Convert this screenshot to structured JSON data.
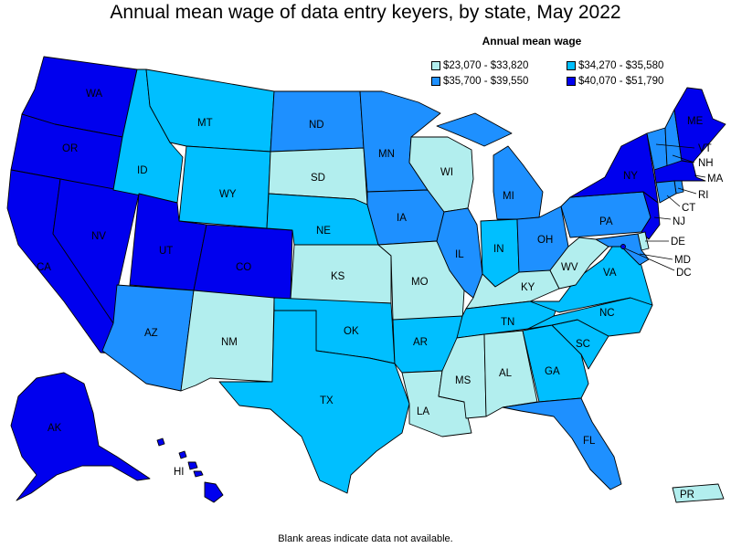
{
  "title": "Annual mean wage of data entry keyers, by state, May 2022",
  "legend": {
    "title": "Annual mean wage",
    "items": [
      {
        "label": "$23,070 - $33,820",
        "color": "#b2eeee"
      },
      {
        "label": "$34,270 - $35,580",
        "color": "#00bfff"
      },
      {
        "label": "$35,700 - $39,550",
        "color": "#1e90ff"
      },
      {
        "label": "$40,070 - $51,790",
        "color": "#0000ee"
      }
    ]
  },
  "footnote": "Blank areas indicate data not available.",
  "states": {
    "WA": {
      "label": "WA",
      "tier": 3
    },
    "OR": {
      "label": "OR",
      "tier": 3
    },
    "CA": {
      "label": "CA",
      "tier": 3
    },
    "NV": {
      "label": "NV",
      "tier": 3
    },
    "ID": {
      "label": "ID",
      "tier": 1
    },
    "MT": {
      "label": "MT",
      "tier": 1
    },
    "WY": {
      "label": "WY",
      "tier": 1
    },
    "UT": {
      "label": "UT",
      "tier": 3
    },
    "CO": {
      "label": "CO",
      "tier": 3
    },
    "AZ": {
      "label": "AZ",
      "tier": 2
    },
    "NM": {
      "label": "NM",
      "tier": 0
    },
    "ND": {
      "label": "ND",
      "tier": 2
    },
    "SD": {
      "label": "SD",
      "tier": 0
    },
    "NE": {
      "label": "NE",
      "tier": 1
    },
    "KS": {
      "label": "KS",
      "tier": 0
    },
    "OK": {
      "label": "OK",
      "tier": 1
    },
    "TX": {
      "label": "TX",
      "tier": 1
    },
    "MN": {
      "label": "MN",
      "tier": 2
    },
    "IA": {
      "label": "IA",
      "tier": 2
    },
    "MO": {
      "label": "MO",
      "tier": 0
    },
    "AR": {
      "label": "AR",
      "tier": 1
    },
    "LA": {
      "label": "LA",
      "tier": 0
    },
    "WI": {
      "label": "WI",
      "tier": 0
    },
    "IL": {
      "label": "IL",
      "tier": 2
    },
    "MI": {
      "label": "MI",
      "tier": 2
    },
    "IN": {
      "label": "IN",
      "tier": 1
    },
    "OH": {
      "label": "OH",
      "tier": 2
    },
    "KY": {
      "label": "KY",
      "tier": 0
    },
    "TN": {
      "label": "TN",
      "tier": 1
    },
    "MS": {
      "label": "MS",
      "tier": 0
    },
    "AL": {
      "label": "AL",
      "tier": 0
    },
    "GA": {
      "label": "GA",
      "tier": 1
    },
    "FL": {
      "label": "FL",
      "tier": 2
    },
    "SC": {
      "label": "SC",
      "tier": 1
    },
    "NC": {
      "label": "NC",
      "tier": 1
    },
    "VA": {
      "label": "VA",
      "tier": 1
    },
    "WV": {
      "label": "WV",
      "tier": 0
    },
    "PA": {
      "label": "PA",
      "tier": 2
    },
    "NY": {
      "label": "NY",
      "tier": 3
    },
    "VT": {
      "label": "VT",
      "tier": 2
    },
    "NH": {
      "label": "NH",
      "tier": 2
    },
    "ME": {
      "label": "ME",
      "tier": 3
    },
    "MA": {
      "label": "MA",
      "tier": 3
    },
    "RI": {
      "label": "RI",
      "tier": 2
    },
    "CT": {
      "label": "CT",
      "tier": 2
    },
    "NJ": {
      "label": "NJ",
      "tier": 3
    },
    "DE": {
      "label": "DE",
      "tier": 0
    },
    "MD": {
      "label": "MD",
      "tier": 2
    },
    "DC": {
      "label": "DC",
      "tier": 3
    },
    "AK": {
      "label": "AK",
      "tier": 3
    },
    "HI": {
      "label": "HI",
      "tier": 3
    },
    "PR": {
      "label": "PR",
      "tier": 0
    }
  }
}
